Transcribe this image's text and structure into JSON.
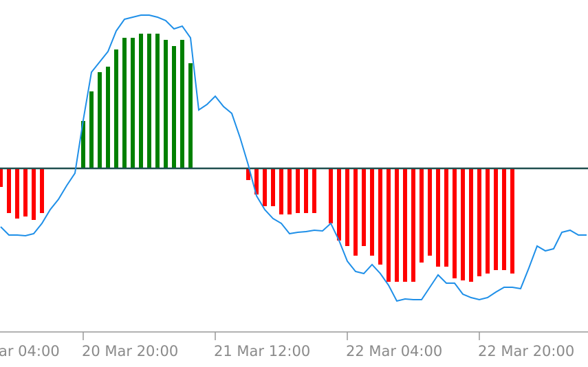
{
  "chart_data": {
    "type": "histogram-line",
    "categories": [
      null,
      null,
      null,
      null,
      null,
      null,
      null,
      null,
      null,
      null,
      "20 Mar 20:00",
      null,
      null,
      null,
      null,
      null,
      null,
      null,
      null,
      null,
      null,
      null,
      null,
      null,
      null,
      null,
      "21 Mar 12:00",
      null,
      null,
      null,
      null,
      null,
      null,
      null,
      null,
      null,
      null,
      null,
      null,
      null,
      null,
      null,
      "22 Mar 04:00",
      null,
      null,
      null,
      null,
      null,
      null,
      null,
      null,
      null,
      null,
      null,
      null,
      null,
      null,
      null,
      "22 Mar 20:00",
      null,
      null,
      null,
      null,
      null,
      null,
      null,
      null,
      null,
      null,
      null,
      null,
      null
    ],
    "partial_tick_label": "ar 04:00",
    "histogram": {
      "positive_color": "#008000",
      "negative_color": "#ff0000",
      "values": [
        -27,
        -65,
        -73,
        -70,
        -75,
        -65,
        0,
        0,
        0,
        0,
        69,
        112,
        140,
        148,
        173,
        190,
        190,
        196,
        196,
        196,
        187,
        178,
        187,
        153,
        0,
        0,
        0,
        0,
        0,
        0,
        -17,
        -38,
        -55,
        -55,
        -67,
        -67,
        -65,
        -65,
        -65,
        0,
        -80,
        -105,
        -113,
        -127,
        -113,
        -127,
        -140,
        -165,
        -165,
        -165,
        -165,
        -137,
        -127,
        -143,
        -143,
        -160,
        -163,
        -165,
        -157,
        -153,
        -148,
        -148,
        -153,
        0,
        0,
        0,
        0,
        0,
        0,
        0,
        0,
        0
      ]
    },
    "line": {
      "color": "#1e8fe8",
      "values": [
        -85,
        -97,
        -97,
        -98,
        -95,
        -80,
        -60,
        -45,
        -25,
        -7,
        70,
        140,
        155,
        170,
        200,
        217,
        220,
        223,
        223,
        220,
        215,
        203,
        207,
        190,
        85,
        93,
        105,
        90,
        80,
        45,
        5,
        -40,
        -60,
        -73,
        -80,
        -95,
        -93,
        -92,
        -90,
        -91,
        -80,
        -105,
        -135,
        -150,
        -153,
        -140,
        -153,
        -170,
        -193,
        -190,
        -191,
        -191,
        -173,
        -155,
        -167,
        -167,
        -183,
        -188,
        -191,
        -188,
        -180,
        -173,
        -173,
        -175,
        -145,
        -113,
        -120,
        -117,
        -93,
        -90,
        -97,
        -97
      ]
    },
    "zero_line_color": "#1f4f4f",
    "ylim": [
      -235,
      245
    ]
  }
}
